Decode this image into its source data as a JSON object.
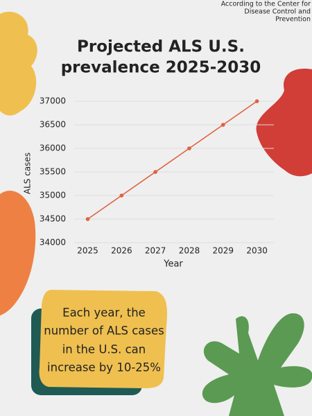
{
  "chart_data": {
    "type": "line",
    "source": [
      "According to the Center for",
      "Disease Control and",
      "Prevention"
    ],
    "title": [
      "Projected ALS U.S.",
      "prevalence 2025-2030"
    ],
    "x_label": "Year",
    "y_label": "ALS cases",
    "x": [
      2025,
      2026,
      2027,
      2028,
      2029,
      2030
    ],
    "values": [
      34500,
      35000,
      35500,
      36000,
      36500,
      37000
    ],
    "color": "#e0603f",
    "xlim": [
      2024.6,
      2030.5
    ],
    "xticks": [
      2025,
      2026,
      2027,
      2028,
      2029,
      2030
    ],
    "ylim": [
      34000,
      37000
    ],
    "yticks": [
      34000,
      34500,
      35000,
      35500,
      36000,
      36500,
      37000
    ],
    "grid": true,
    "annotation": [
      "Each year, the",
      "number of ALS cases",
      "in the U.S. can",
      "increase by 10-25%"
    ]
  }
}
